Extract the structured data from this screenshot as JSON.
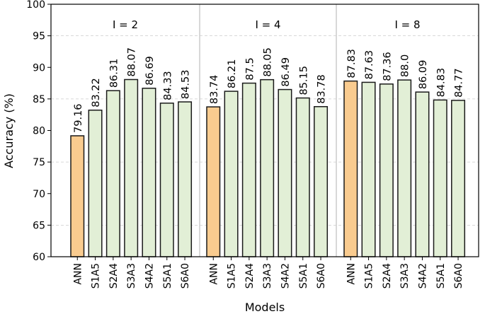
{
  "chart_data": {
    "type": "bar",
    "xlabel": "Models",
    "ylabel": "Accuracy (%)",
    "ylim": [
      60,
      100
    ],
    "yticks": [
      60,
      65,
      70,
      75,
      80,
      85,
      90,
      95,
      100
    ],
    "grid": "horizontal dashed",
    "categories": [
      "ANN",
      "S1A5",
      "S2A4",
      "S3A3",
      "S4A2",
      "S5A1",
      "S6A0"
    ],
    "groups": [
      {
        "label": "I = 2",
        "values": [
          79.16,
          83.22,
          86.31,
          88.07,
          86.69,
          84.33,
          84.53
        ],
        "value_labels": [
          "79.16",
          "83.22",
          "86.31",
          "88.07",
          "86.69",
          "84.33",
          "84.53"
        ]
      },
      {
        "label": "I = 4",
        "values": [
          83.74,
          86.21,
          87.5,
          88.05,
          86.49,
          85.15,
          83.78
        ],
        "value_labels": [
          "83.74",
          "86.21",
          "87.5",
          "88.05",
          "86.49",
          "85.15",
          "83.78"
        ]
      },
      {
        "label": "I = 8",
        "values": [
          87.83,
          87.63,
          87.36,
          88.0,
          86.09,
          84.83,
          84.77
        ],
        "value_labels": [
          "87.83",
          "87.63",
          "87.36",
          "88.0",
          "86.09",
          "84.83",
          "84.77"
        ]
      }
    ],
    "colors": {
      "ANN": "#f9cb8f",
      "SNN": "#e2efd6",
      "edge": "#1a1a1a"
    }
  }
}
